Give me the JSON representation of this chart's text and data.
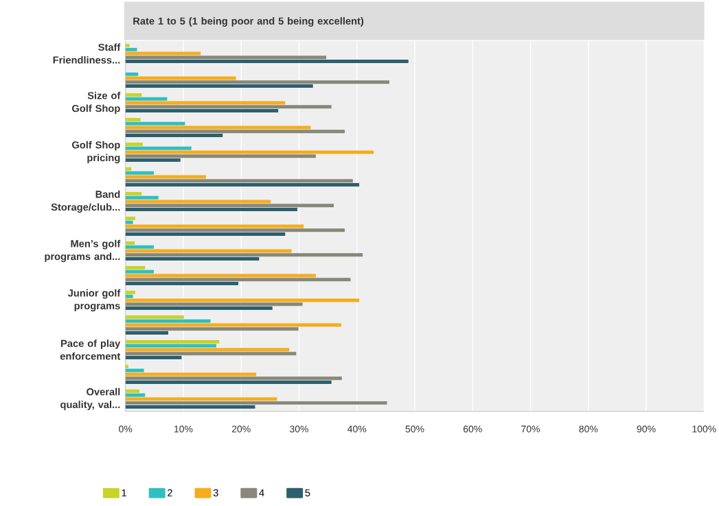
{
  "chart_data": {
    "type": "bar",
    "orientation": "horizontal",
    "title": "Rate 1 to 5 (1 being poor and 5 being excellent)",
    "categories": [
      "Staff Friendliness...",
      null,
      "Size of Golf Shop",
      null,
      "Golf Shop pricing",
      null,
      "Band Storage/club...",
      null,
      "Men’s golf programs and...",
      null,
      "Junior golf programs",
      null,
      "Pace of play enforcement",
      null,
      "Overall quality, val..."
    ],
    "series": [
      {
        "name": "1",
        "color": "#c8d42a",
        "values": [
          0.7,
          0,
          2.8,
          2.6,
          3.0,
          1.0,
          2.8,
          1.7,
          1.6,
          3.4,
          1.7,
          10.1,
          16.2,
          0.5,
          2.4
        ]
      },
      {
        "name": "2",
        "color": "#30bfc0",
        "values": [
          2.0,
          2.2,
          7.2,
          10.3,
          11.4,
          4.9,
          5.7,
          1.3,
          4.9,
          4.9,
          1.3,
          14.7,
          15.7,
          3.2,
          3.4
        ]
      },
      {
        "name": "3",
        "color": "#f5ad1e",
        "values": [
          13.0,
          19.1,
          27.6,
          32.0,
          42.9,
          13.9,
          25.1,
          30.8,
          28.7,
          32.9,
          40.4,
          37.3,
          28.3,
          22.6,
          26.2
        ]
      },
      {
        "name": "4",
        "color": "#87887a",
        "values": [
          34.7,
          45.6,
          35.6,
          37.9,
          32.9,
          39.3,
          36.0,
          37.9,
          41.0,
          38.9,
          30.6,
          29.9,
          29.5,
          37.4,
          45.2
        ]
      },
      {
        "name": "5",
        "color": "#2d5f6e",
        "values": [
          48.9,
          32.4,
          26.4,
          16.8,
          9.5,
          40.4,
          29.7,
          27.6,
          23.1,
          19.5,
          25.4,
          7.4,
          9.7,
          35.6,
          22.4
        ]
      }
    ],
    "xlim": [
      0,
      100
    ],
    "xticks": [
      {
        "value": 0,
        "label": "0%"
      },
      {
        "value": 10,
        "label": "10%"
      },
      {
        "value": 20,
        "label": "20%"
      },
      {
        "value": 30,
        "label": "30%"
      },
      {
        "value": 40,
        "label": "40%"
      },
      {
        "value": 50,
        "label": "50%"
      },
      {
        "value": 60,
        "label": "60%"
      },
      {
        "value": 70,
        "label": "70%"
      },
      {
        "value": 80,
        "label": "80%"
      },
      {
        "value": 90,
        "label": "90%"
      },
      {
        "value": 100,
        "label": "100%"
      }
    ],
    "grid": "x",
    "legend": "bottom left"
  }
}
